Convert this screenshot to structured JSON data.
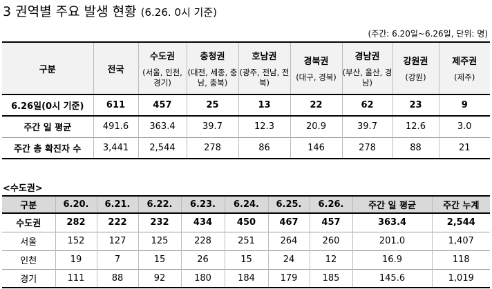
{
  "header": {
    "number": "3",
    "title": "권역별 주요 발생 현황",
    "basis": "(6.26. 0시 기준)",
    "unit_note": "(주간: 6.20일~6.26일, 단위: 명)"
  },
  "table1": {
    "columns": [
      {
        "label": "구분"
      },
      {
        "label": "전국"
      },
      {
        "label": "수도권",
        "sub": "(서울, 인천, 경기)"
      },
      {
        "label": "충청권",
        "sub": "(대전, 세종, 충남, 충북)"
      },
      {
        "label": "호남권",
        "sub": "(광주, 전남, 전북)"
      },
      {
        "label": "경북권",
        "sub": "(대구, 경북)"
      },
      {
        "label": "경남권",
        "sub": "(부산, 울산, 경남)"
      },
      {
        "label": "강원권",
        "sub": "(강원)"
      },
      {
        "label": "제주권",
        "sub": "(제주)"
      }
    ],
    "rows": [
      [
        "6.26일(0시 기준)",
        "611",
        "457",
        "25",
        "13",
        "22",
        "62",
        "23",
        "9"
      ],
      [
        "주간 일 평균",
        "491.6",
        "363.4",
        "39.7",
        "12.3",
        "20.9",
        "39.7",
        "12.6",
        "3.0"
      ],
      [
        "주간 총 확진자 수",
        "3,441",
        "2,544",
        "278",
        "86",
        "146",
        "278",
        "88",
        "21"
      ]
    ]
  },
  "section_label": "<수도권>",
  "table2": {
    "columns": [
      "구분",
      "6.20.",
      "6.21.",
      "6.22.",
      "6.23.",
      "6.24.",
      "6.25.",
      "6.26.",
      "주간 일 평균",
      "주간 누계"
    ],
    "rows": [
      [
        "수도권",
        "282",
        "222",
        "232",
        "434",
        "450",
        "467",
        "457",
        "363.4",
        "2,544"
      ],
      [
        "서울",
        "152",
        "127",
        "125",
        "228",
        "251",
        "264",
        "260",
        "201.0",
        "1,407"
      ],
      [
        "인천",
        "19",
        "7",
        "15",
        "26",
        "15",
        "24",
        "12",
        "16.9",
        "118"
      ],
      [
        "경기",
        "111",
        "88",
        "92",
        "180",
        "184",
        "179",
        "185",
        "145.6",
        "1,019"
      ]
    ]
  }
}
